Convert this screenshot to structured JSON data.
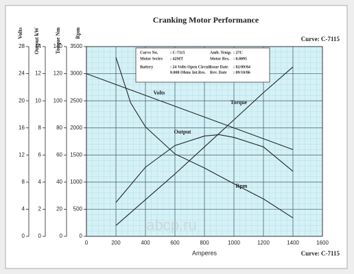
{
  "chart_data": {
    "type": "line",
    "title": "Cranking Motor Performance",
    "curve_top": "Curve: C-7115",
    "curve_bottom": "Curve: C-7115",
    "watermark": "abcp.ru",
    "x_label": "Amperes",
    "xlim": [
      0,
      1600
    ],
    "xticks": [
      0,
      200,
      400,
      600,
      800,
      1000,
      1200,
      1400,
      1600
    ],
    "grid": true,
    "axes": [
      {
        "title": "Volts",
        "lim": [
          0,
          28
        ],
        "ticks": [
          0,
          4,
          8,
          12,
          16,
          20,
          24,
          28
        ]
      },
      {
        "title": "Output kW",
        "lim": [
          0,
          14
        ],
        "ticks": [
          0,
          2,
          4,
          6,
          8,
          10,
          12,
          14
        ]
      },
      {
        "title": "Torque Nm",
        "lim": [
          0,
          140
        ],
        "ticks": [
          0,
          20,
          40,
          60,
          80,
          100,
          120,
          140
        ]
      },
      {
        "title": "Rpm",
        "lim": [
          0,
          3500
        ],
        "ticks": [
          0,
          500,
          1000,
          1500,
          2000,
          2500,
          3000,
          3500
        ]
      }
    ],
    "series": [
      {
        "name": "Volts",
        "axis": 0,
        "color": "#222222",
        "x": [
          0,
          1400
        ],
        "values": [
          24,
          12.8
        ]
      },
      {
        "name": "Torque",
        "axis": 2,
        "color": "#222222",
        "x": [
          200,
          400,
          600,
          800,
          1000,
          1200,
          1400
        ],
        "values": [
          8,
          27,
          46,
          66,
          86,
          106,
          125
        ]
      },
      {
        "name": "Output",
        "axis": 1,
        "color": "#222222",
        "x": [
          200,
          400,
          600,
          800,
          900,
          1000,
          1200,
          1400
        ],
        "values": [
          2.5,
          5.1,
          6.7,
          7.4,
          7.5,
          7.3,
          6.6,
          4.8
        ]
      },
      {
        "name": "Rpm",
        "axis": 3,
        "color": "#222222",
        "x": [
          200,
          300,
          400,
          600,
          800,
          1000,
          1200,
          1400
        ],
        "values": [
          3300,
          2460,
          2020,
          1520,
          1260,
          970,
          690,
          340
        ]
      }
    ],
    "info_box": [
      [
        "Curve No.",
        ": C-7115",
        "Amb. Temp.",
        ": 27C"
      ],
      [
        "Motor Series",
        ": 42MT",
        "Motor Res.",
        ": 0.0095"
      ],
      [
        "Battery",
        ": 24 Volts Open Circuit",
        "Issue Date",
        ": 02/09/84"
      ],
      [
        "",
        "0.008 Ohms Int.Res.",
        "Rev. Date",
        ": 09/10/86"
      ]
    ]
  }
}
